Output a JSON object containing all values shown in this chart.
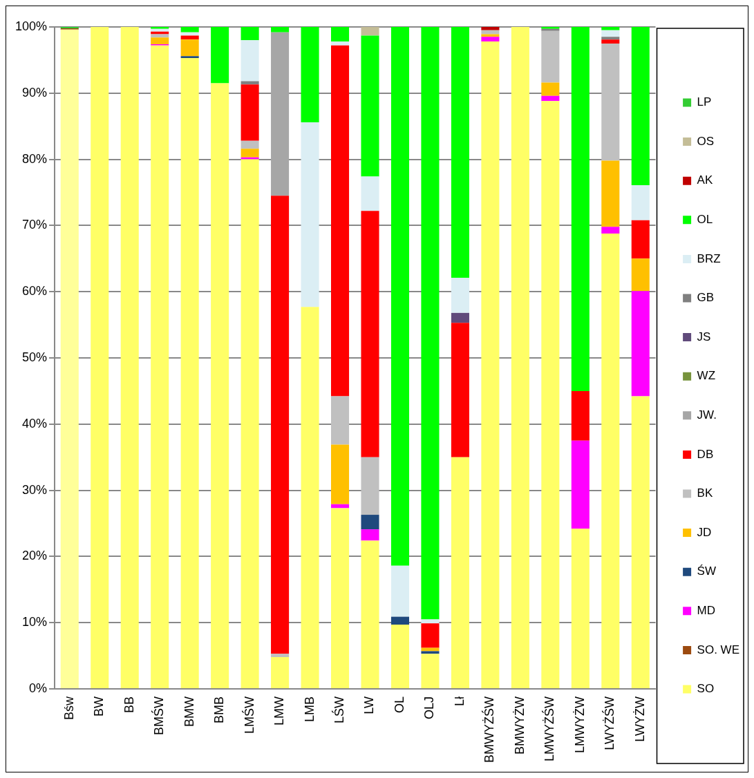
{
  "chart_data": {
    "type": "bar",
    "stacked": true,
    "legend": "right",
    "grid": "y",
    "categories": [
      "Bśw",
      "BW",
      "BB",
      "BMŚW",
      "BMW",
      "BMB",
      "LMŚW",
      "LMW",
      "LMB",
      "LŚW",
      "LW",
      "OL",
      "OLJ",
      "Lł",
      "BMWYŻŚW",
      "BMWYŻW",
      "LMWYŻŚW",
      "LMWYŻW",
      "LWYŻŚW",
      "LWYŻW"
    ],
    "ylim": [
      0,
      100
    ],
    "yticks": [
      {
        "value": 0,
        "label": "0%"
      },
      {
        "value": 10,
        "label": "10%"
      },
      {
        "value": 20,
        "label": "20%"
      },
      {
        "value": 30,
        "label": "30%"
      },
      {
        "value": 40,
        "label": "40%"
      },
      {
        "value": 50,
        "label": "50%"
      },
      {
        "value": 60,
        "label": "60%"
      },
      {
        "value": 70,
        "label": "70%"
      },
      {
        "value": 80,
        "label": "80%"
      },
      {
        "value": 90,
        "label": "90%"
      },
      {
        "value": 100,
        "label": "100%"
      }
    ],
    "series": [
      {
        "name": "SO",
        "color": "#ffff66",
        "colors": [
          "#ffff99",
          "#ffff66",
          "#ffff66",
          "#ffff66",
          "#ffff66",
          "#ffff66",
          "#ffff66",
          "#ffff66",
          "#ffff66",
          "#ffff66",
          "#ffff66",
          "#ffff66",
          "#ffff66",
          "#ffff66",
          "#ffff66",
          "#ffff66",
          "#ffff66",
          "#ffff66",
          "#ffff66",
          "#ffff66"
        ],
        "values": [
          99.6,
          100,
          100,
          97.2,
          95.3,
          91.5,
          80.0,
          4.8,
          57.7,
          27.3,
          22.4,
          9.7,
          5.3,
          35.0,
          97.8,
          100,
          88.8,
          24.2,
          68.8,
          44.2
        ]
      },
      {
        "name": "SO. WE",
        "color": "#9c4a0f",
        "values": [
          0.2,
          0,
          0,
          0,
          0,
          0,
          0,
          0,
          0,
          0,
          0,
          0,
          0,
          0,
          0,
          0,
          0,
          0,
          0,
          0
        ]
      },
      {
        "name": "MD",
        "color": "#ff00ff",
        "values": [
          0,
          0,
          0,
          0.2,
          0,
          0,
          0.3,
          0,
          0,
          0.6,
          1.7,
          0,
          0,
          0,
          0.7,
          0,
          0.8,
          13.3,
          1.0,
          15.9
        ]
      },
      {
        "name": "ŚW",
        "color": "#1f497d",
        "values": [
          0,
          0,
          0,
          0,
          0.3,
          0,
          0,
          0,
          0,
          0,
          2.2,
          1.2,
          0.4,
          0,
          0,
          0,
          0,
          0,
          0,
          0
        ]
      },
      {
        "name": "JD",
        "color": "#ffc000",
        "values": [
          0,
          0,
          0,
          1.0,
          2.5,
          0,
          1.3,
          0,
          0,
          9.0,
          0,
          0,
          0.5,
          0,
          0.4,
          0,
          2.0,
          0,
          10.0,
          4.9
        ]
      },
      {
        "name": "BK",
        "color": "#c0c0c0",
        "values": [
          0,
          0,
          0,
          0.5,
          0,
          0,
          1.2,
          0.5,
          0,
          7.3,
          8.7,
          0,
          0,
          0,
          0.6,
          0,
          7.8,
          0,
          17.7,
          0
        ]
      },
      {
        "name": "DB",
        "color": "#ff0000",
        "values": [
          0,
          0,
          0,
          0.4,
          0.6,
          0,
          8.5,
          69.2,
          0,
          53.0,
          37.2,
          0,
          3.7,
          20.3,
          0,
          0,
          0,
          7.5,
          0.6,
          5.8
        ]
      },
      {
        "name": "JW.",
        "color": "#a6a6a6",
        "values": [
          0,
          0,
          0,
          0,
          0,
          0,
          0,
          24.7,
          0,
          0,
          0,
          0,
          0,
          0,
          0,
          0,
          0,
          0,
          0,
          0
        ]
      },
      {
        "name": "WZ",
        "color": "#77933c",
        "values": [
          0,
          0,
          0,
          0,
          0,
          0,
          0,
          0,
          0,
          0,
          0,
          0,
          0,
          0,
          0,
          0,
          0,
          0,
          0,
          0
        ]
      },
      {
        "name": "JS",
        "color": "#604a7b",
        "values": [
          0,
          0,
          0,
          0,
          0,
          0,
          0,
          0,
          0,
          0,
          0,
          0,
          0,
          1.5,
          0,
          0,
          0,
          0,
          0,
          0
        ]
      },
      {
        "name": "GB",
        "color": "#808080",
        "values": [
          0,
          0,
          0,
          0,
          0,
          0,
          0.5,
          0,
          0,
          0,
          0,
          0,
          0,
          0,
          0,
          0,
          0.3,
          0,
          0.4,
          0
        ]
      },
      {
        "name": "BRZ",
        "color": "#dbeef4",
        "values": [
          0,
          0,
          0,
          0.4,
          0.5,
          0,
          6.2,
          0,
          27.9,
          0.6,
          5.2,
          7.7,
          0.6,
          5.3,
          0,
          0,
          0,
          0,
          1.0,
          5.3
        ]
      },
      {
        "name": "OL",
        "color": "#00ff00",
        "values": [
          0,
          0,
          0,
          0.3,
          0.8,
          8.5,
          2.0,
          0.8,
          14.4,
          2.2,
          21.3,
          81.4,
          89.5,
          37.9,
          0,
          0,
          0.3,
          55.0,
          0.5,
          23.9
        ]
      },
      {
        "name": "AK",
        "color": "#c00000",
        "values": [
          0,
          0,
          0,
          0,
          0,
          0,
          0,
          0,
          0,
          0,
          0,
          0,
          0,
          0,
          0.5,
          0,
          0,
          0,
          0,
          0
        ]
      },
      {
        "name": "OS",
        "color": "#c4bd97",
        "values": [
          0,
          0,
          0,
          0,
          0,
          0,
          0,
          0,
          0,
          0,
          1.3,
          0,
          0,
          0,
          0,
          0,
          0,
          0,
          0,
          0
        ]
      },
      {
        "name": "LP",
        "color": "#33cc33",
        "values": [
          0.2,
          0,
          0,
          0,
          0,
          0,
          0,
          0,
          0,
          0,
          0,
          0,
          0,
          0,
          0,
          0,
          0,
          0,
          0,
          0
        ]
      }
    ]
  }
}
